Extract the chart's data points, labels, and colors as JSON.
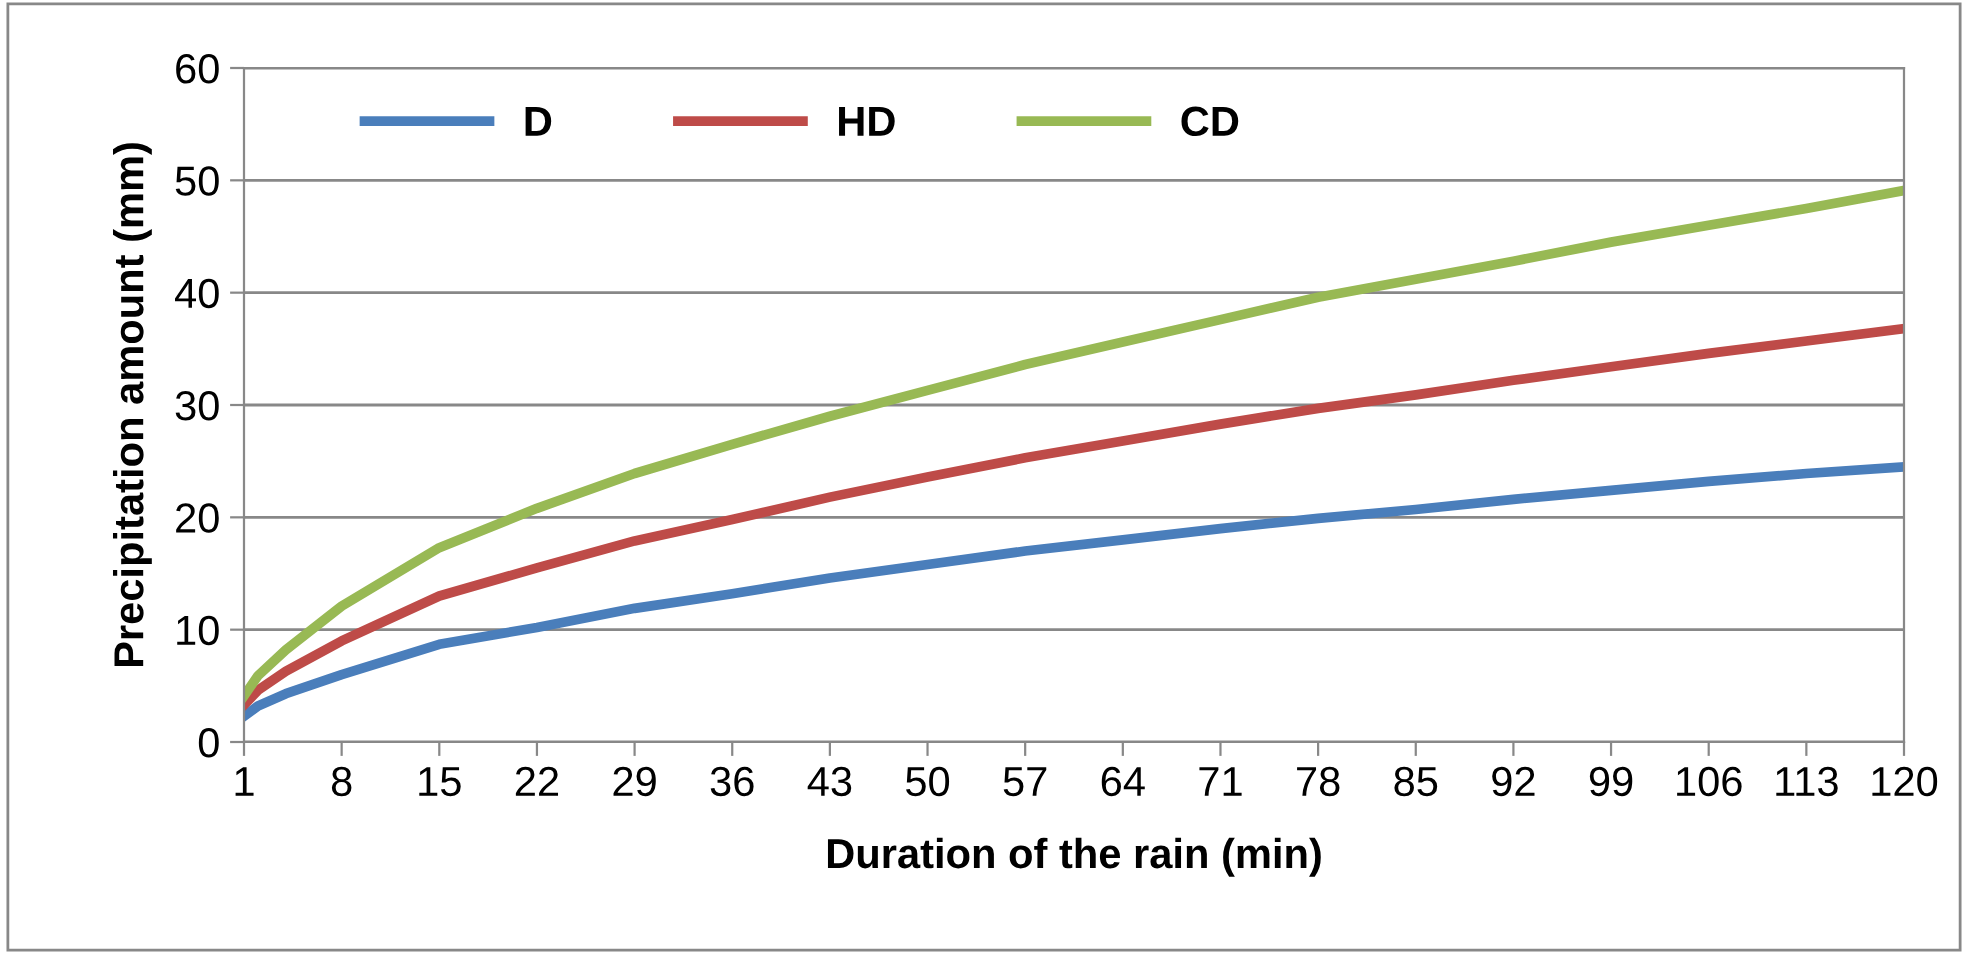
{
  "chart_data": {
    "type": "line",
    "xlabel": "Duration of the rain (min)",
    "ylabel": "Precipitation amount (mm)",
    "x": [
      1,
      2,
      4,
      8,
      15,
      22,
      29,
      36,
      43,
      50,
      57,
      64,
      71,
      78,
      85,
      92,
      99,
      106,
      113,
      120
    ],
    "series": [
      {
        "name": "D",
        "color": "#4a7ebb",
        "values": [
          2.3,
          3.2,
          4.3,
          6.0,
          8.7,
          10.2,
          11.9,
          13.2,
          14.6,
          15.8,
          17.0,
          18.0,
          19.0,
          19.9,
          20.7,
          21.6,
          22.4,
          23.2,
          23.9,
          24.5
        ]
      },
      {
        "name": "HD",
        "color": "#be4b48",
        "values": [
          3.3,
          4.6,
          6.3,
          9.0,
          13.0,
          15.5,
          17.9,
          19.8,
          21.8,
          23.6,
          25.3,
          26.8,
          28.3,
          29.7,
          30.9,
          32.2,
          33.4,
          34.6,
          35.7,
          36.8
        ]
      },
      {
        "name": "CD",
        "color": "#98b954",
        "values": [
          4.1,
          5.9,
          8.2,
          12.1,
          17.3,
          20.8,
          23.9,
          26.5,
          29.0,
          31.3,
          33.6,
          35.6,
          37.6,
          39.6,
          41.2,
          42.8,
          44.5,
          46.0,
          47.5,
          49.1
        ]
      }
    ],
    "xlim": [
      1,
      120
    ],
    "xticks": [
      1,
      8,
      15,
      22,
      29,
      36,
      43,
      50,
      57,
      64,
      71,
      78,
      85,
      92,
      99,
      106,
      113,
      120
    ],
    "ylim": [
      0,
      60
    ],
    "yticks": [
      0,
      10,
      20,
      30,
      40,
      50,
      60
    ],
    "grid": "y",
    "legend": "top left",
    "marker": "none",
    "line_style": "solid"
  }
}
